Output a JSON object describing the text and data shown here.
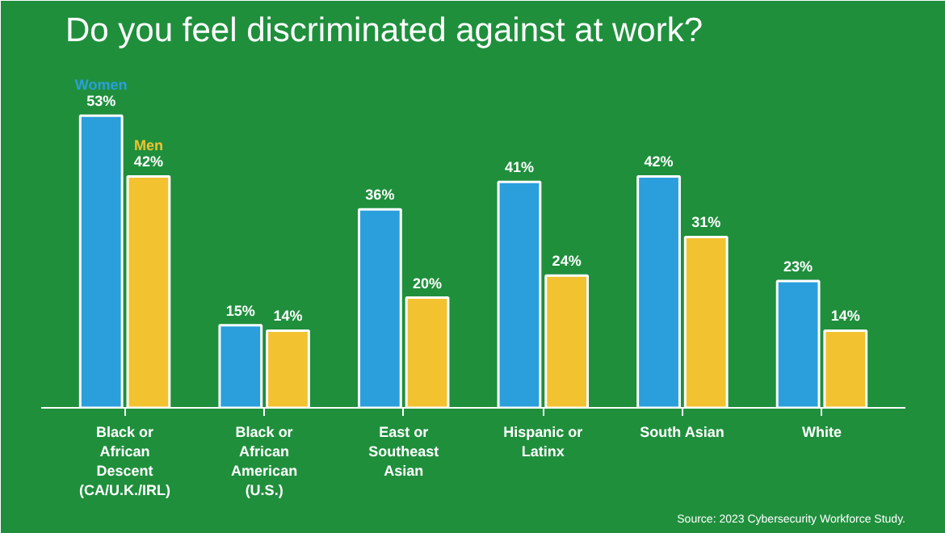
{
  "chart_data": {
    "type": "bar",
    "title": "Do you feel discriminated against at work?",
    "categories": [
      "Black or\nAfrican\nDescent\n(CA/U.K./IRL)",
      "Black or\nAfrican\nAmerican\n(U.S.)",
      "East or\nSoutheast\nAsian",
      "Hispanic or\nLatinx",
      "South Asian",
      "White"
    ],
    "series": [
      {
        "name": "Women",
        "color": "#2b9fdc",
        "values": [
          53,
          15,
          36,
          41,
          42,
          23
        ],
        "value_labels": [
          "53%",
          "15%",
          "36%",
          "41%",
          "42%",
          "23%"
        ]
      },
      {
        "name": "Men",
        "color": "#f2c230",
        "values": [
          42,
          14,
          20,
          24,
          31,
          14
        ],
        "value_labels": [
          "42%",
          "14%",
          "20%",
          "24%",
          "31%",
          "14%"
        ]
      }
    ],
    "annotations": [
      "Source: 2023 Cybersecurity Workforce Study."
    ],
    "grid": false
  }
}
